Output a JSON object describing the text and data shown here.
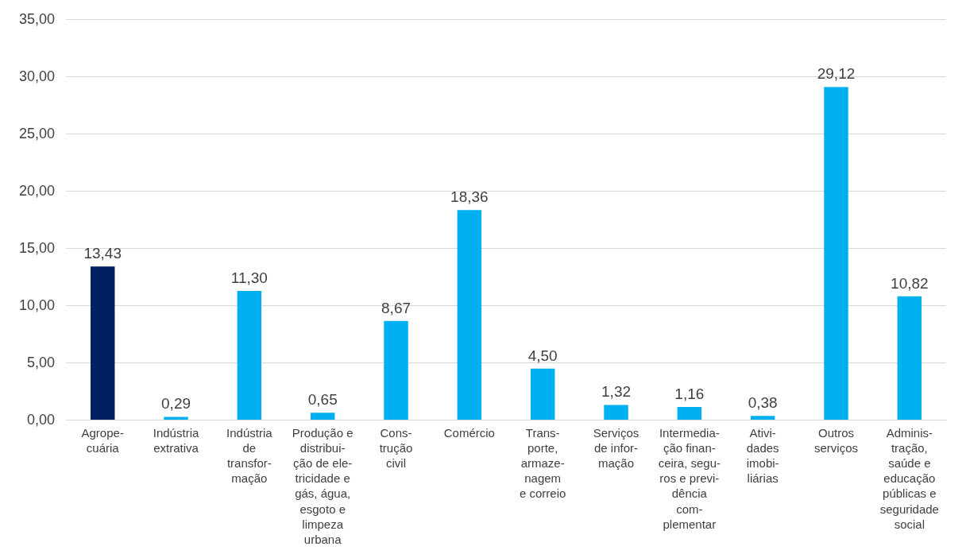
{
  "chart_data": {
    "type": "bar",
    "categories": [
      "Agrope-\ncuária",
      "Indústria\nextrativa",
      "Indústria\nde\ntransfor-\nmação",
      "Produção e\ndistribui-\nção de ele-\ntricidade e\ngás, água,\nesgoto e\nlimpeza\nurbana",
      "Cons-\ntrução\ncivil",
      "Comércio",
      "Trans-\nporte,\narmaze-\nnagem\ne correio",
      "Serviços\nde infor-\nmação",
      "Intermedia-\nção finan-\nceira, segu-\nros e previ-\ndência\ncom-\nplementar",
      "Ativi-\ndades\nimobi-\nliárias",
      "Outros\nserviços",
      "Adminis-\ntração,\nsaúde e\neducação\npúblicas e\nseguridade\nsocial"
    ],
    "values": [
      13.43,
      0.29,
      11.3,
      0.65,
      8.67,
      18.36,
      4.5,
      1.32,
      1.16,
      0.38,
      29.12,
      10.82
    ],
    "value_labels": [
      "13,43",
      "0,29",
      "11,30",
      "0,65",
      "8,67",
      "18,36",
      "4,50",
      "1,32",
      "1,16",
      "0,38",
      "29,12",
      "10,82"
    ],
    "colors": [
      "#002060",
      "#00b0f0",
      "#00b0f0",
      "#00b0f0",
      "#00b0f0",
      "#00b0f0",
      "#00b0f0",
      "#00b0f0",
      "#00b0f0",
      "#00b0f0",
      "#00b0f0",
      "#00b0f0"
    ],
    "ylim": [
      0,
      35
    ],
    "yticks": [
      {
        "value": 0,
        "label": "0,00"
      },
      {
        "value": 5,
        "label": "5,00"
      },
      {
        "value": 10,
        "label": "10,00"
      },
      {
        "value": 15,
        "label": "15,00"
      },
      {
        "value": 20,
        "label": "20,00"
      },
      {
        "value": 25,
        "label": "25,00"
      },
      {
        "value": 30,
        "label": "30,00"
      },
      {
        "value": 35,
        "label": "35,00"
      }
    ],
    "grid": "y",
    "legend": false
  }
}
